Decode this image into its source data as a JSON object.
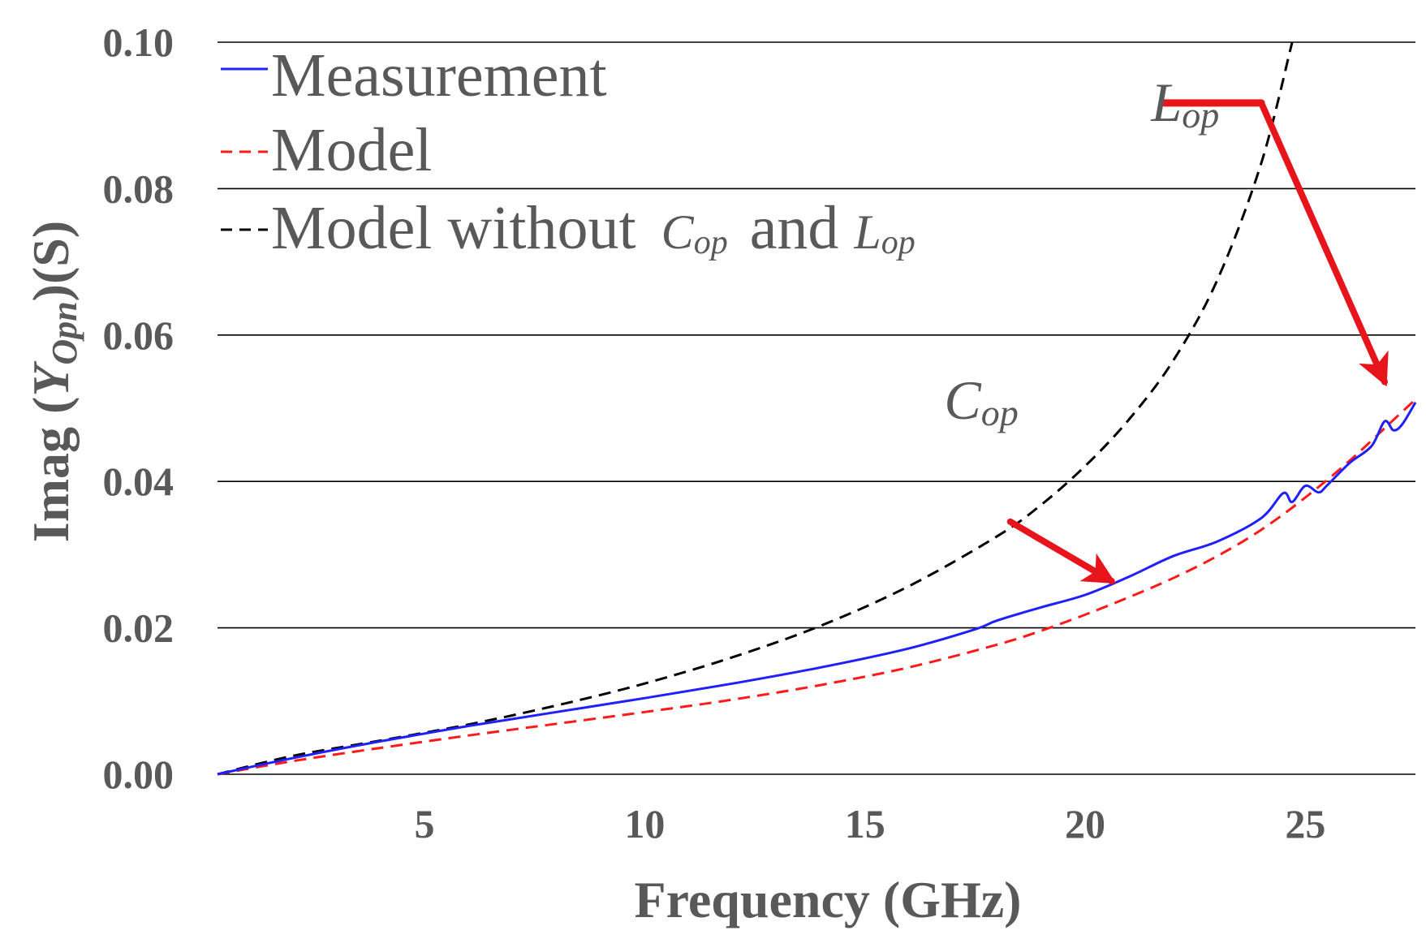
{
  "chart_data": {
    "type": "line",
    "xlabel": "Frequency (GHz)",
    "ylabel": {
      "prefix": "Imag (",
      "var": "Y",
      "sub": "Opn",
      "suffix": ")(S)"
    },
    "xlim": [
      0.3,
      27.5
    ],
    "ylim": [
      0,
      0.1
    ],
    "x_ticks": [
      5,
      10,
      15,
      20,
      25
    ],
    "x_tick_labels": [
      "5",
      "10",
      "15",
      "20",
      "25"
    ],
    "y_ticks": [
      0,
      0.02,
      0.04,
      0.06,
      0.08,
      0.1
    ],
    "y_tick_labels": [
      "0.00",
      "0.02",
      "0.04",
      "0.06",
      "0.08",
      "0.10"
    ],
    "grid": "horizontal",
    "legend_position": "top-left",
    "series": [
      {
        "name": "Measurement",
        "legend_text": "Measurement",
        "color": "#1f1fff",
        "style": "solid",
        "x": [
          0.3,
          2,
          4,
          6,
          8,
          10,
          12,
          14,
          16,
          17.5,
          18,
          19,
          20,
          21,
          22,
          23,
          24,
          24.5,
          24.7,
          25,
          25.3,
          25.5,
          26,
          26.5,
          26.8,
          27,
          27.2,
          27.5
        ],
        "y": [
          0,
          0.0022,
          0.0045,
          0.0066,
          0.0085,
          0.0104,
          0.0124,
          0.0146,
          0.0172,
          0.0198,
          0.021,
          0.0228,
          0.0245,
          0.027,
          0.0298,
          0.0318,
          0.035,
          0.0384,
          0.0372,
          0.0394,
          0.0385,
          0.0395,
          0.0425,
          0.0448,
          0.0482,
          0.047,
          0.0478,
          0.0508
        ]
      },
      {
        "name": "Model",
        "legend_text": "Model",
        "color": "#ff1a1a",
        "style": "dashed",
        "x": [
          0.3,
          2,
          4,
          6,
          8,
          10,
          12,
          14,
          16,
          18,
          19,
          20,
          21,
          22,
          23,
          24,
          25,
          26,
          27,
          27.5
        ],
        "y": [
          0,
          0.0018,
          0.0036,
          0.0053,
          0.0069,
          0.0085,
          0.0102,
          0.0122,
          0.0146,
          0.0177,
          0.0196,
          0.0218,
          0.0242,
          0.0268,
          0.0298,
          0.0334,
          0.0378,
          0.0428,
          0.0484,
          0.0512
        ]
      },
      {
        "name": "Model without Cop and Lop",
        "legend_parts": [
          "Model without ",
          "C",
          "op",
          " and ",
          "L",
          "op"
        ],
        "color": "#000000",
        "style": "dashed",
        "x": [
          0.3,
          2,
          4,
          6,
          8,
          10,
          12,
          14,
          16,
          18,
          19,
          20,
          21,
          22,
          23,
          24,
          24.7
        ],
        "y": [
          0,
          0.0025,
          0.0046,
          0.0068,
          0.0094,
          0.0124,
          0.016,
          0.0203,
          0.0257,
          0.0325,
          0.0368,
          0.0421,
          0.0485,
          0.0565,
          0.0675,
          0.0835,
          0.1
        ]
      }
    ],
    "annotations": [
      {
        "letter": "C",
        "sub": "op",
        "arrow_from": [
          18.3,
          0.0345
        ],
        "arrow_to": [
          20.6,
          0.0264
        ],
        "label_at": [
          16.8,
          0.051
        ]
      },
      {
        "letter": "L",
        "sub": "op",
        "arrow_from": [
          24.0,
          0.0917
        ],
        "arrow_to": [
          26.8,
          0.0536
        ],
        "label_at": [
          21.5,
          0.0917
        ],
        "tail_from": [
          21.8,
          0.0917
        ]
      }
    ],
    "arrow_color": "#e8141c"
  }
}
